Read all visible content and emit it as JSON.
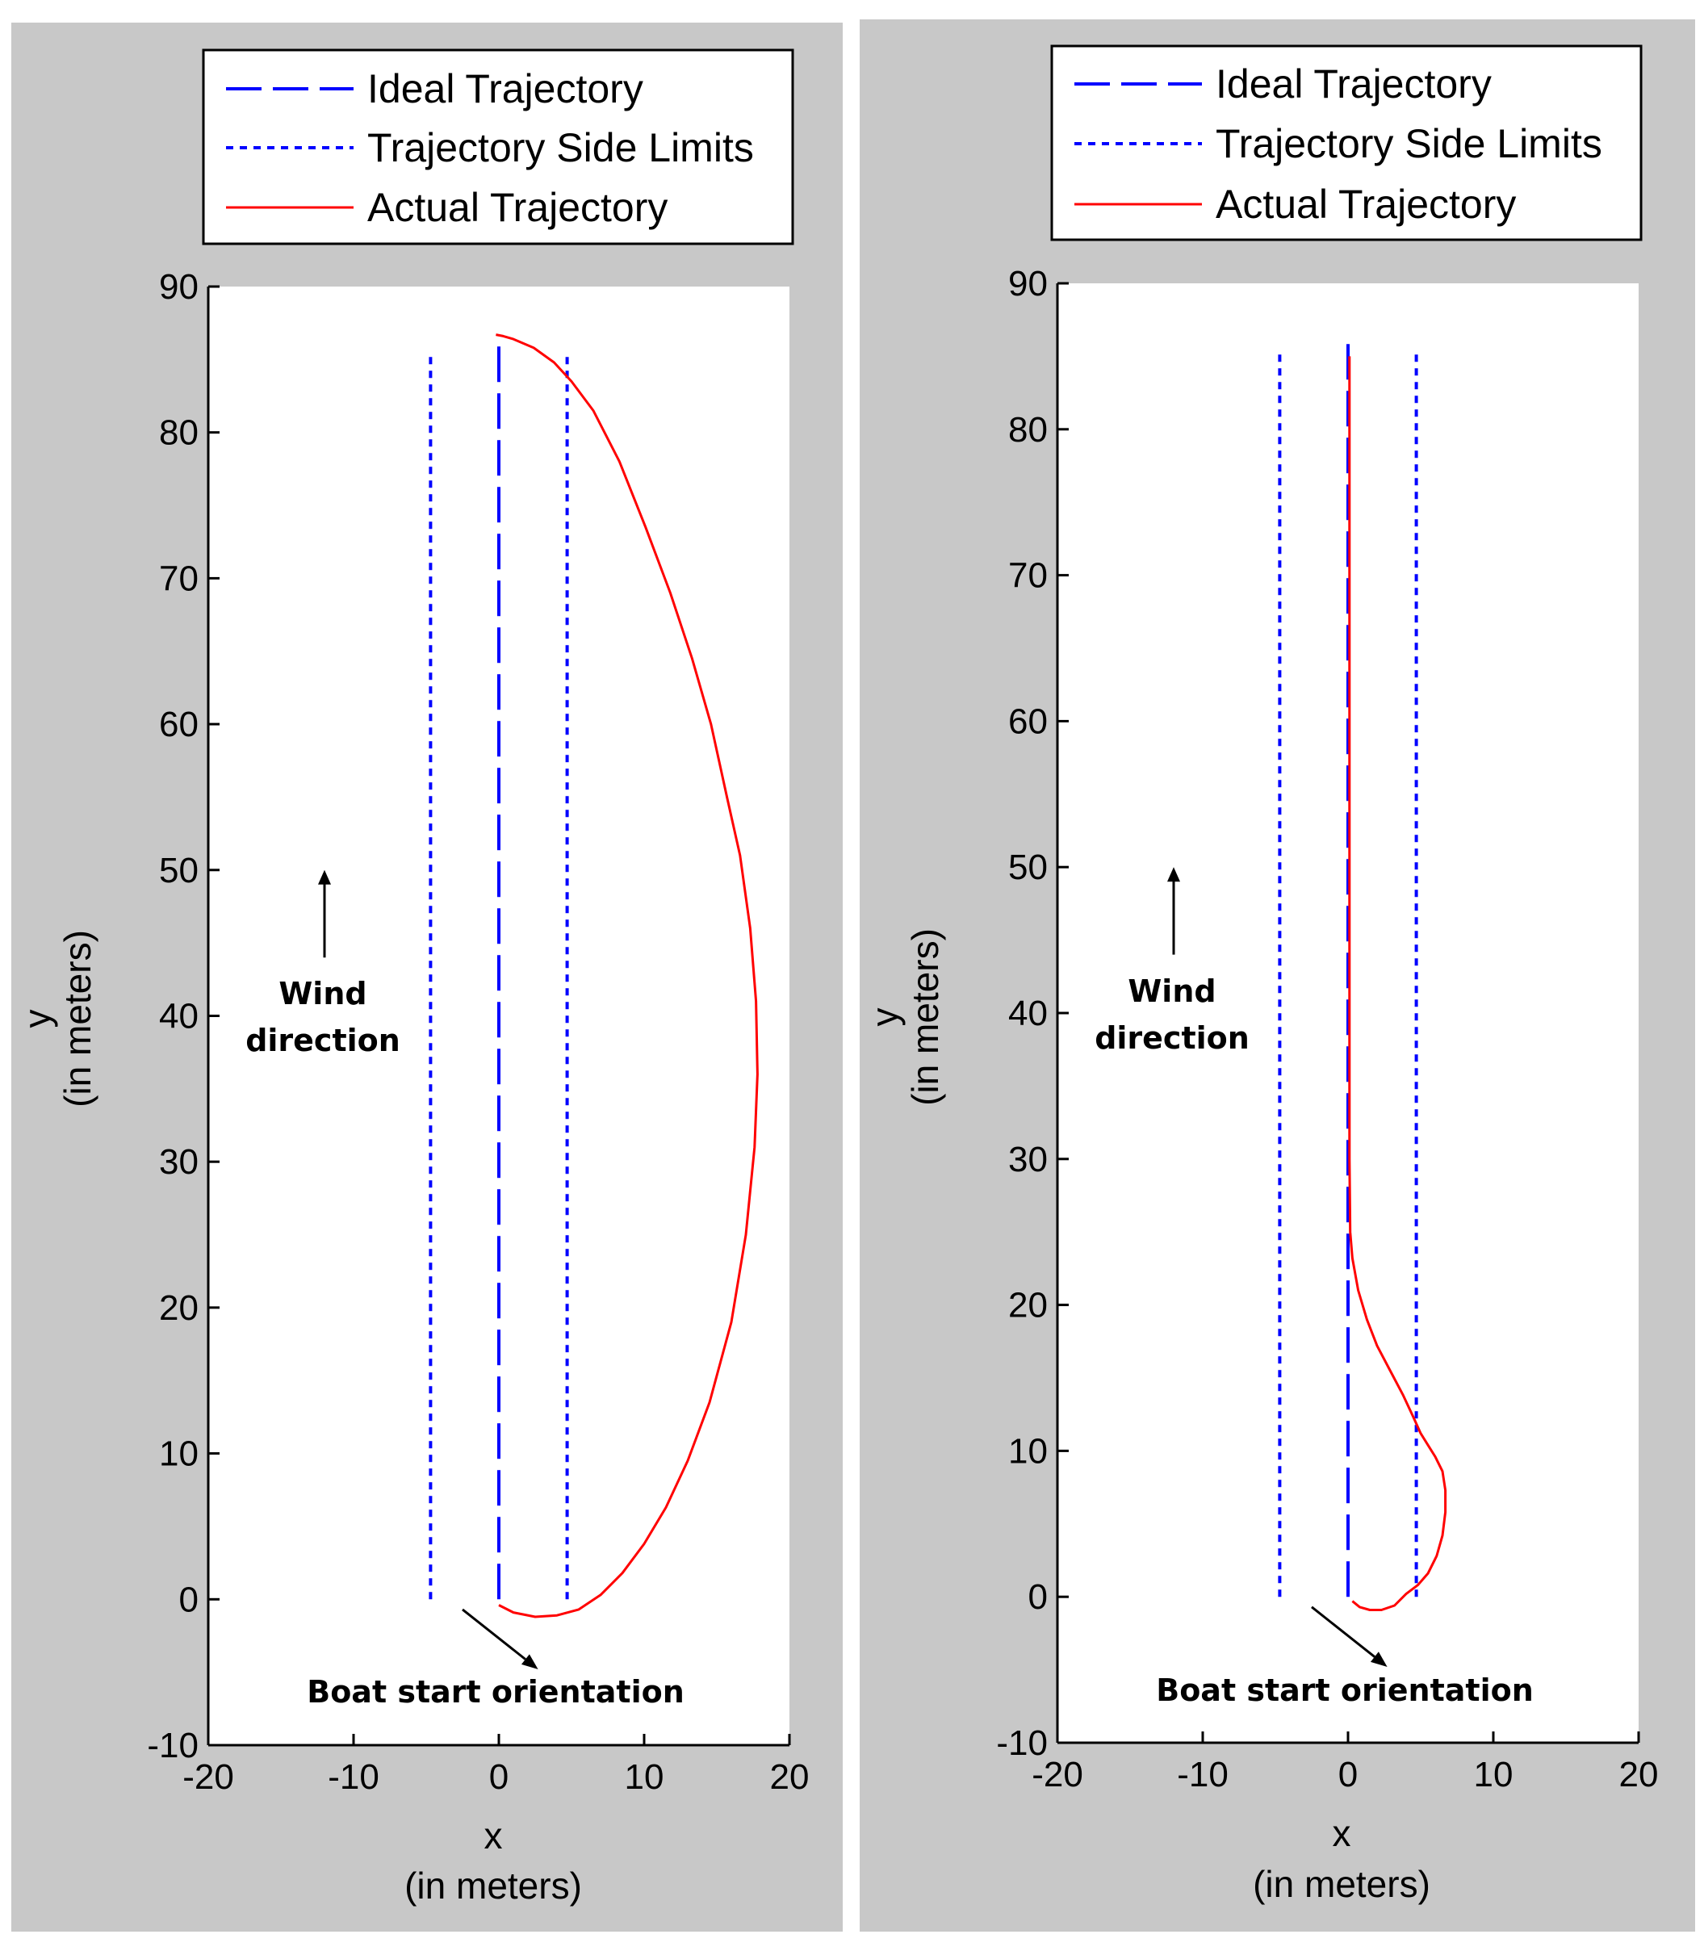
{
  "colors": {
    "panel_bg": "#c8c8c8",
    "axes_bg": "#ffffff",
    "ideal": "#0000ff",
    "limits": "#0000ff",
    "actual": "#ff0000"
  },
  "chart_data": [
    {
      "type": "line",
      "legend": [
        "Ideal Trajectory",
        "Trajectory Side Limits",
        "Actual Trajectory"
      ],
      "legend_position": "top",
      "xlabel_line1": "x",
      "xlabel_line2": "(in meters)",
      "ylabel_line1": "y",
      "ylabel_line2": "(in meters)",
      "xlim": [
        -20,
        20
      ],
      "ylim": [
        -10,
        90
      ],
      "xticks": [
        -20,
        -10,
        0,
        10,
        20
      ],
      "yticks": [
        -10,
        0,
        10,
        20,
        30,
        40,
        50,
        60,
        70,
        80,
        90
      ],
      "annotations": {
        "wind_line1": "Wind",
        "wind_line2": "direction",
        "boat": "Boat start orientation"
      },
      "wind_arrow": {
        "x": -12,
        "y_from": 44,
        "y_to": 50
      },
      "boat_arrow": {
        "x_from": -2.5,
        "y_from": -0.7,
        "x_to": 2.7,
        "y_to": -4.8
      },
      "series": [
        {
          "name": "Ideal Trajectory",
          "style": "dashed",
          "x": [
            0,
            0
          ],
          "y": [
            0,
            86
          ]
        },
        {
          "name": "Trajectory Side Limits",
          "style": "dotted",
          "x": [
            -4.7,
            -4.7
          ],
          "y": [
            0,
            85.5
          ]
        },
        {
          "name": "Trajectory Side Limits",
          "style": "dotted",
          "x": [
            4.7,
            4.7
          ],
          "y": [
            0,
            85.5
          ]
        },
        {
          "name": "Actual Trajectory",
          "style": "solid",
          "x": [
            0,
            1,
            2.5,
            4,
            5.5,
            7,
            8.5,
            10,
            11.5,
            13,
            14.5,
            16,
            17,
            17.6,
            17.8,
            17.7,
            17.3,
            16.6,
            15.7,
            14.6,
            13.3,
            11.8,
            10.1,
            8.3,
            6.5,
            5.0,
            3.8,
            2.4,
            1.0,
            0.3,
            -0.2
          ],
          "y": [
            -0.4,
            -0.9,
            -1.2,
            -1.1,
            -0.7,
            0.3,
            1.8,
            3.8,
            6.3,
            9.5,
            13.5,
            19,
            25,
            31,
            36,
            41,
            46,
            51,
            55,
            60,
            64.5,
            69,
            73.5,
            78,
            81.5,
            83.5,
            84.8,
            85.8,
            86.4,
            86.6,
            86.7
          ]
        }
      ]
    },
    {
      "type": "line",
      "legend": [
        "Ideal Trajectory",
        "Trajectory Side Limits",
        "Actual Trajectory"
      ],
      "legend_position": "top",
      "xlabel_line1": "x",
      "xlabel_line2": "(in meters)",
      "ylabel_line1": "y",
      "ylabel_line2": "(in meters)",
      "xlim": [
        -20,
        20
      ],
      "ylim": [
        -10,
        90
      ],
      "xticks": [
        -20,
        -10,
        0,
        10,
        20
      ],
      "yticks": [
        -10,
        0,
        10,
        20,
        30,
        40,
        50,
        60,
        70,
        80,
        90
      ],
      "annotations": {
        "wind_line1": "Wind",
        "wind_line2": "direction",
        "boat": "Boat start orientation"
      },
      "wind_arrow": {
        "x": -12,
        "y_from": 44,
        "y_to": 50
      },
      "boat_arrow": {
        "x_from": -2.5,
        "y_from": -0.7,
        "x_to": 2.7,
        "y_to": -4.8
      },
      "series": [
        {
          "name": "Ideal Trajectory",
          "style": "dashed",
          "x": [
            0,
            0
          ],
          "y": [
            0,
            86
          ]
        },
        {
          "name": "Trajectory Side Limits",
          "style": "dotted",
          "x": [
            -4.7,
            -4.7
          ],
          "y": [
            0,
            85.5
          ]
        },
        {
          "name": "Trajectory Side Limits",
          "style": "dotted",
          "x": [
            4.7,
            4.7
          ],
          "y": [
            0,
            85.5
          ]
        },
        {
          "name": "Actual Trajectory",
          "style": "solid",
          "x": [
            0.3,
            0.8,
            1.5,
            2.3,
            3.2,
            4.0,
            4.8,
            5.5,
            6.1,
            6.5,
            6.7,
            6.7,
            6.5,
            6.0,
            5.5,
            5.0,
            4.5,
            3.8,
            2.9,
            2.0,
            1.3,
            0.7,
            0.3,
            0.15,
            0.1,
            0.1,
            0.1
          ],
          "y": [
            -0.3,
            -0.7,
            -0.9,
            -0.9,
            -0.6,
            0.2,
            0.8,
            1.6,
            2.8,
            4.2,
            5.8,
            7.3,
            8.6,
            9.6,
            10.4,
            11.2,
            12.3,
            13.8,
            15.5,
            17.2,
            19.0,
            21.0,
            23.2,
            25,
            30,
            60,
            85
          ]
        }
      ]
    }
  ]
}
